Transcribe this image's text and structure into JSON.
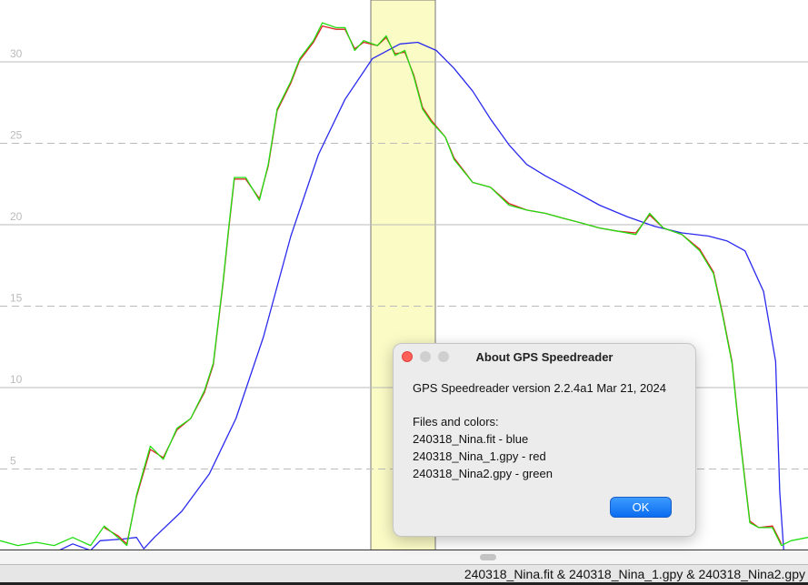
{
  "chart_data": {
    "type": "line",
    "xlim": [
      0,
      100
    ],
    "ylim": [
      0,
      33.8
    ],
    "yticks": [
      5,
      10,
      15,
      20,
      25,
      30
    ],
    "grid": true,
    "series": [
      {
        "color": "#2a2aee",
        "x": [
          0,
          7.3,
          9.0,
          11.2,
          12.4,
          15.2,
          16.9,
          17.8,
          19.1,
          22.5,
          25.9,
          29.2,
          32.6,
          36.0,
          39.4,
          42.7,
          46.1,
          49.5,
          51.7,
          54.0,
          56.2,
          58.5,
          60.7,
          63.0,
          65.2,
          67.5,
          70.9,
          74.2,
          77.6,
          81.0,
          84.4,
          87.7,
          90.0,
          92.2,
          94.5,
          96.0,
          96.5,
          97.0
        ],
        "values": [
          0,
          0,
          0.4,
          0,
          0.6,
          0.7,
          0.8,
          0.1,
          0.8,
          2.4,
          4.7,
          8.1,
          13.1,
          19.3,
          24.3,
          27.7,
          30.2,
          31.1,
          31.2,
          30.7,
          29.6,
          28.2,
          26.5,
          24.9,
          23.7,
          23.0,
          22.1,
          21.2,
          20.5,
          19.9,
          19.5,
          19.3,
          19.0,
          18.4,
          15.9,
          11.6,
          3.6,
          0
        ]
      },
      {
        "color": "#dd1f1f",
        "x": [
          12.9,
          14.6,
          15.7,
          16.9,
          18.6,
          20.2,
          21.9,
          23.6,
          25.3,
          26.4,
          27.6,
          28.3,
          29.0,
          30.4,
          32.1,
          33.2,
          34.3,
          36.0,
          37.1,
          38.8,
          39.9,
          41.6,
          42.7,
          43.9,
          45.0,
          46.7,
          47.8,
          48.9,
          50.1,
          51.2,
          52.3,
          53.4,
          55.1,
          56.2,
          58.5,
          60.7,
          63.0,
          65.2,
          67.5,
          69.7,
          72.0,
          74.2,
          76.5,
          78.7,
          80.4,
          82.1,
          84.4,
          86.6,
          88.3,
          89.4,
          90.6,
          91.3,
          92.2,
          92.8,
          93.9,
          95.6,
          96.7
        ],
        "values": [
          1.4,
          0.9,
          0.4,
          3.3,
          6.2,
          5.7,
          7.4,
          8.1,
          9.7,
          11.4,
          16.4,
          19.7,
          22.8,
          22.8,
          21.6,
          23.6,
          27.0,
          28.7,
          30.1,
          31.2,
          32.2,
          32.0,
          32.0,
          30.8,
          31.2,
          31.0,
          31.5,
          30.5,
          30.6,
          29.2,
          27.2,
          26.4,
          25.4,
          24.1,
          22.6,
          22.3,
          21.3,
          20.9,
          20.7,
          20.4,
          20.1,
          19.8,
          19.6,
          19.5,
          20.6,
          19.8,
          19.4,
          18.5,
          17.1,
          14.6,
          11.6,
          8.2,
          4.3,
          1.8,
          1.4,
          1.5,
          0.4
        ]
      },
      {
        "color": "#22dd11",
        "x": [
          0,
          2.2,
          4.5,
          6.7,
          9.0,
          11.2,
          12.9,
          14.6,
          15.7,
          16.9,
          18.6,
          20.2,
          21.9,
          23.6,
          25.3,
          26.4,
          27.6,
          28.3,
          29.0,
          30.4,
          32.1,
          33.2,
          34.3,
          36.0,
          37.1,
          38.8,
          39.9,
          41.6,
          42.7,
          43.9,
          45.0,
          46.7,
          47.8,
          48.9,
          50.1,
          51.2,
          52.3,
          53.4,
          55.1,
          56.2,
          58.5,
          60.7,
          63.0,
          65.2,
          67.5,
          69.7,
          72.0,
          74.2,
          76.5,
          78.7,
          80.4,
          82.1,
          84.4,
          86.6,
          88.3,
          89.4,
          90.6,
          91.3,
          92.2,
          92.8,
          93.9,
          95.6,
          96.7,
          97.9,
          100
        ],
        "values": [
          0.6,
          0.3,
          0.5,
          0.3,
          0.8,
          0.3,
          1.5,
          0.8,
          0.3,
          3.4,
          6.4,
          5.6,
          7.5,
          8.1,
          9.8,
          11.5,
          16.5,
          19.8,
          22.9,
          22.9,
          21.5,
          23.7,
          27.1,
          28.8,
          30.2,
          31.3,
          32.4,
          32.1,
          32.1,
          30.7,
          31.3,
          31.0,
          31.6,
          30.4,
          30.7,
          29.1,
          27.1,
          26.3,
          25.4,
          24.0,
          22.6,
          22.3,
          21.2,
          20.9,
          20.7,
          20.4,
          20.1,
          19.8,
          19.6,
          19.4,
          20.7,
          19.8,
          19.4,
          18.4,
          17.0,
          14.5,
          11.5,
          8.1,
          4.2,
          1.7,
          1.4,
          1.4,
          0.3,
          0.6,
          0.8
        ]
      }
    ]
  },
  "dialog": {
    "title": "About GPS Speedreader",
    "version": "GPS Speedreader version 2.2.4a1 Mar 21, 2024",
    "files_heading": "Files and colors:",
    "files": [
      "240318_Nina.fit - blue",
      "240318_Nina_1.gpy - red",
      "240318_Nina2.gpy - green"
    ],
    "button": "OK"
  },
  "status_bar": "240318_Nina.fit & 240318_Nina_1.gpy & 240318_Nina2.gpy"
}
